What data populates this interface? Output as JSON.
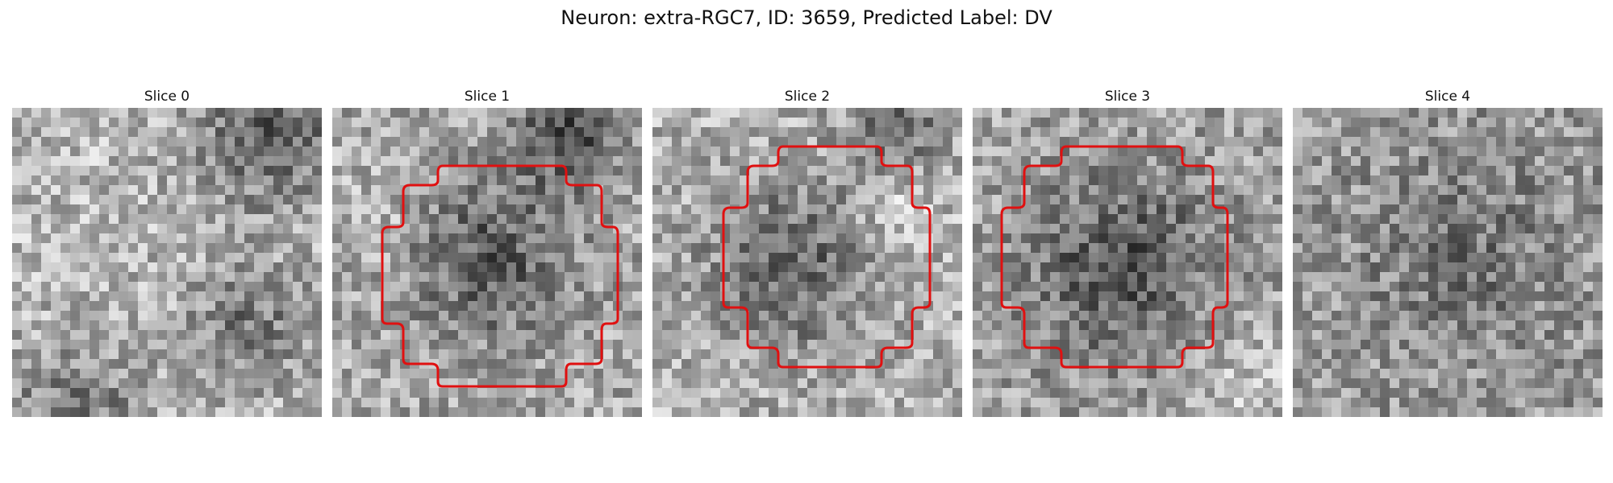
{
  "figure": {
    "title": "Neuron: extra-RGC7, ID: 3659, Predicted Label: DV"
  },
  "panels": [
    {
      "title": "Slice 0",
      "has_contour": false
    },
    {
      "title": "Slice 1",
      "has_contour": true
    },
    {
      "title": "Slice 2",
      "has_contour": true
    },
    {
      "title": "Slice 3",
      "has_contour": true
    },
    {
      "title": "Slice 4",
      "has_contour": false
    }
  ],
  "style": {
    "contour_color": "#e01010",
    "image_colormap": "gray"
  }
}
